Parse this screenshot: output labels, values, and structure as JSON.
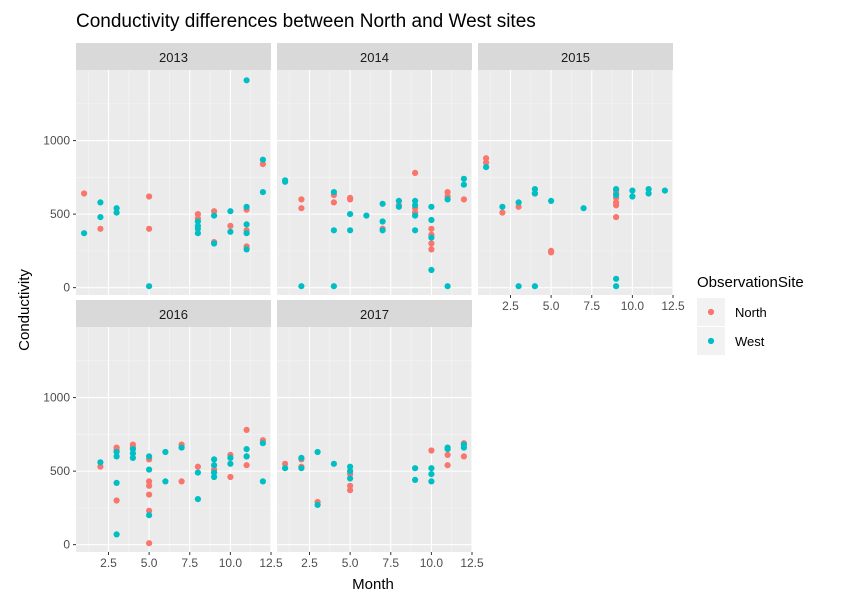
{
  "chart_data": {
    "type": "scatter",
    "title": "Conductivity differences between North and West sites",
    "xlabel": "Month",
    "ylabel": "Conductivity",
    "xlim": [
      0.5,
      12.5
    ],
    "ylim": [
      -50,
      1480
    ],
    "x_ticks": [
      2.5,
      5.0,
      7.5,
      10.0,
      12.5
    ],
    "x_tick_labels": [
      "2.5",
      "5.0",
      "7.5",
      "10.0",
      "12.5"
    ],
    "y_ticks": [
      0,
      500,
      1000
    ],
    "y_tick_labels": [
      "0",
      "500",
      "1000"
    ],
    "grid": true,
    "legend": {
      "title": "ObservationSite",
      "position": "right",
      "entries": [
        {
          "name": "North",
          "color": "#F8766D"
        },
        {
          "name": "West",
          "color": "#00BFC4"
        }
      ]
    },
    "facets": [
      {
        "label": "2013",
        "series": [
          {
            "name": "North",
            "points": [
              [
                1,
                640
              ],
              [
                2,
                400
              ],
              [
                5,
                620
              ],
              [
                5,
                400
              ],
              [
                8,
                500
              ],
              [
                8,
                470
              ],
              [
                9,
                520
              ],
              [
                9,
                310
              ],
              [
                10,
                420
              ],
              [
                11,
                530
              ],
              [
                11,
                390
              ],
              [
                11,
                280
              ],
              [
                12,
                840
              ]
            ]
          },
          {
            "name": "West",
            "points": [
              [
                1,
                370
              ],
              [
                2,
                580
              ],
              [
                2,
                480
              ],
              [
                3,
                540
              ],
              [
                3,
                510
              ],
              [
                5,
                10
              ],
              [
                8,
                450
              ],
              [
                8,
                420
              ],
              [
                8,
                400
              ],
              [
                8,
                370
              ],
              [
                9,
                490
              ],
              [
                9,
                300
              ],
              [
                10,
                520
              ],
              [
                10,
                380
              ],
              [
                11,
                1410
              ],
              [
                11,
                550
              ],
              [
                11,
                430
              ],
              [
                11,
                370
              ],
              [
                11,
                260
              ],
              [
                12,
                870
              ],
              [
                12,
                650
              ]
            ]
          }
        ]
      },
      {
        "label": "2014",
        "series": [
          {
            "name": "North",
            "points": [
              [
                2,
                600
              ],
              [
                2,
                540
              ],
              [
                4,
                630
              ],
              [
                4,
                580
              ],
              [
                5,
                610
              ],
              [
                5,
                600
              ],
              [
                7,
                400
              ],
              [
                8,
                560
              ],
              [
                9,
                780
              ],
              [
                9,
                540
              ],
              [
                9,
                510
              ],
              [
                10,
                400
              ],
              [
                10,
                360
              ],
              [
                10,
                300
              ],
              [
                10,
                260
              ],
              [
                11,
                650
              ],
              [
                11,
                620
              ],
              [
                12,
                600
              ]
            ]
          },
          {
            "name": "West",
            "points": [
              [
                1,
                730
              ],
              [
                1,
                720
              ],
              [
                2,
                10
              ],
              [
                4,
                650
              ],
              [
                4,
                390
              ],
              [
                4,
                10
              ],
              [
                5,
                500
              ],
              [
                5,
                390
              ],
              [
                6,
                490
              ],
              [
                7,
                570
              ],
              [
                7,
                450
              ],
              [
                7,
                390
              ],
              [
                8,
                590
              ],
              [
                8,
                550
              ],
              [
                9,
                590
              ],
              [
                9,
                560
              ],
              [
                9,
                490
              ],
              [
                9,
                390
              ],
              [
                10,
                550
              ],
              [
                10,
                460
              ],
              [
                10,
                340
              ],
              [
                10,
                120
              ],
              [
                11,
                600
              ],
              [
                11,
                10
              ],
              [
                12,
                740
              ],
              [
                12,
                700
              ]
            ]
          }
        ]
      },
      {
        "label": "2015",
        "series": [
          {
            "name": "North",
            "points": [
              [
                1,
                880
              ],
              [
                1,
                850
              ],
              [
                2,
                510
              ],
              [
                3,
                550
              ],
              [
                4,
                640
              ],
              [
                5,
                250
              ],
              [
                5,
                240
              ],
              [
                9,
                660
              ],
              [
                9,
                640
              ],
              [
                9,
                610
              ],
              [
                9,
                580
              ],
              [
                9,
                560
              ],
              [
                9,
                480
              ]
            ]
          },
          {
            "name": "West",
            "points": [
              [
                1,
                820
              ],
              [
                2,
                550
              ],
              [
                3,
                580
              ],
              [
                3,
                10
              ],
              [
                4,
                670
              ],
              [
                4,
                640
              ],
              [
                4,
                10
              ],
              [
                5,
                590
              ],
              [
                7,
                540
              ],
              [
                9,
                670
              ],
              [
                9,
                630
              ],
              [
                9,
                60
              ],
              [
                9,
                10
              ],
              [
                10,
                660
              ],
              [
                10,
                620
              ],
              [
                11,
                670
              ],
              [
                11,
                640
              ],
              [
                12,
                660
              ]
            ]
          }
        ]
      },
      {
        "label": "2016",
        "series": [
          {
            "name": "North",
            "points": [
              [
                2,
                530
              ],
              [
                3,
                660
              ],
              [
                3,
                640
              ],
              [
                3,
                300
              ],
              [
                4,
                680
              ],
              [
                4,
                660
              ],
              [
                5,
                580
              ],
              [
                5,
                430
              ],
              [
                5,
                400
              ],
              [
                5,
                340
              ],
              [
                5,
                230
              ],
              [
                5,
                10
              ],
              [
                7,
                680
              ],
              [
                7,
                430
              ],
              [
                8,
                530
              ],
              [
                9,
                510
              ],
              [
                10,
                610
              ],
              [
                10,
                460
              ],
              [
                11,
                780
              ],
              [
                11,
                600
              ],
              [
                11,
                540
              ],
              [
                12,
                710
              ]
            ]
          },
          {
            "name": "West",
            "points": [
              [
                2,
                560
              ],
              [
                3,
                630
              ],
              [
                3,
                600
              ],
              [
                3,
                420
              ],
              [
                3,
                70
              ],
              [
                4,
                650
              ],
              [
                4,
                620
              ],
              [
                4,
                590
              ],
              [
                5,
                600
              ],
              [
                5,
                510
              ],
              [
                5,
                200
              ],
              [
                6,
                630
              ],
              [
                6,
                430
              ],
              [
                7,
                660
              ],
              [
                8,
                490
              ],
              [
                8,
                310
              ],
              [
                9,
                580
              ],
              [
                9,
                540
              ],
              [
                9,
                490
              ],
              [
                9,
                460
              ],
              [
                10,
                590
              ],
              [
                10,
                550
              ],
              [
                11,
                650
              ],
              [
                11,
                600
              ],
              [
                12,
                690
              ],
              [
                12,
                430
              ]
            ]
          }
        ]
      },
      {
        "label": "2017",
        "series": [
          {
            "name": "North",
            "points": [
              [
                1,
                550
              ],
              [
                2,
                580
              ],
              [
                2,
                530
              ],
              [
                3,
                290
              ],
              [
                5,
                480
              ],
              [
                5,
                400
              ],
              [
                5,
                370
              ],
              [
                10,
                640
              ],
              [
                11,
                610
              ],
              [
                11,
                540
              ],
              [
                12,
                690
              ],
              [
                12,
                600
              ]
            ]
          },
          {
            "name": "West",
            "points": [
              [
                1,
                520
              ],
              [
                2,
                590
              ],
              [
                2,
                520
              ],
              [
                3,
                630
              ],
              [
                3,
                270
              ],
              [
                4,
                550
              ],
              [
                5,
                530
              ],
              [
                5,
                500
              ],
              [
                5,
                450
              ],
              [
                9,
                520
              ],
              [
                9,
                440
              ],
              [
                10,
                520
              ],
              [
                10,
                480
              ],
              [
                10,
                430
              ],
              [
                11,
                660
              ],
              [
                11,
                650
              ],
              [
                12,
                680
              ],
              [
                12,
                660
              ]
            ]
          }
        ]
      }
    ]
  }
}
